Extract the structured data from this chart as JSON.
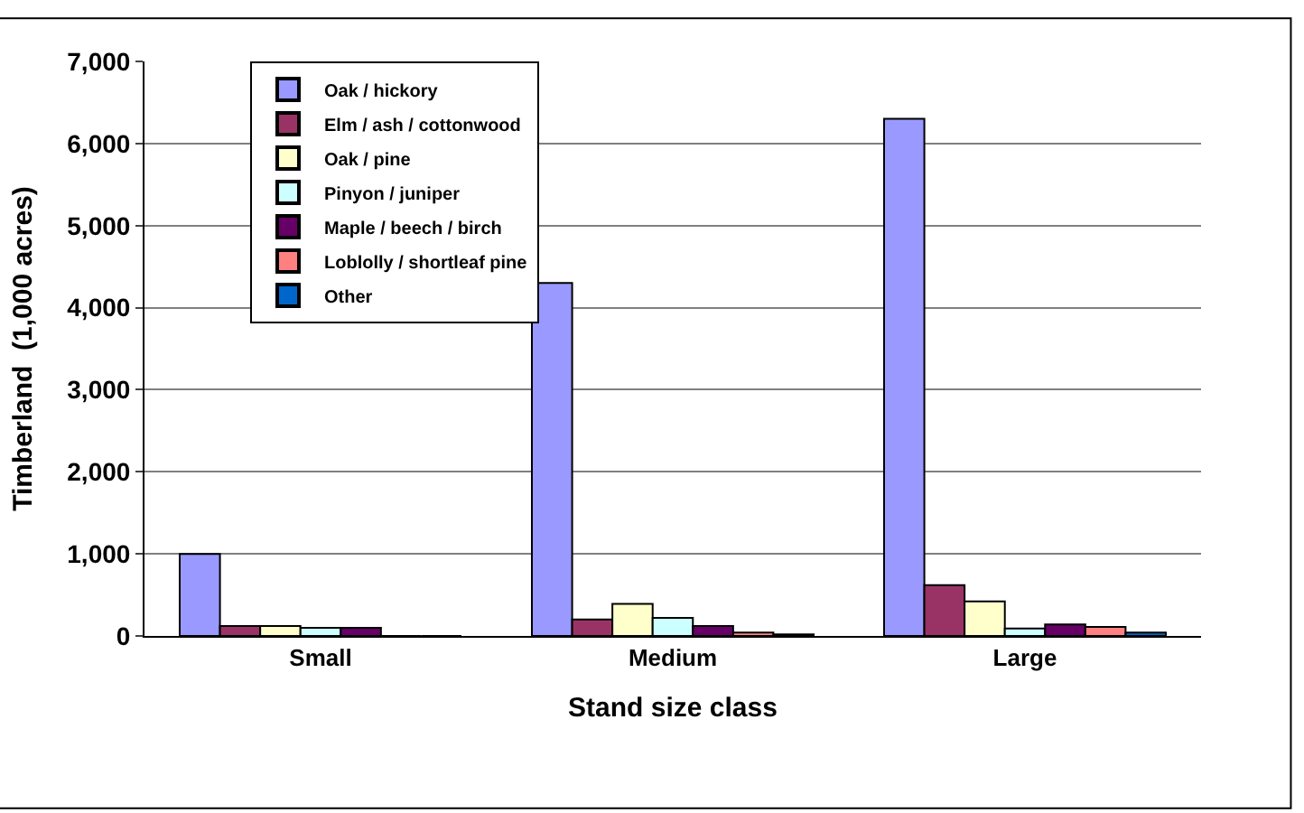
{
  "chart_data": {
    "type": "bar",
    "xlabel": "Stand size class",
    "ylabel": "Timberland  (1,000 acres)",
    "categories": [
      "Small",
      "Medium",
      "Large"
    ],
    "series": [
      {
        "name": "Oak / hickory",
        "color": "#9999ff",
        "values": [
          1000,
          4300,
          6300
        ]
      },
      {
        "name": "Elm / ash / cottonwood",
        "color": "#993366",
        "values": [
          120,
          200,
          620
        ]
      },
      {
        "name": "Oak / pine",
        "color": "#ffffcc",
        "values": [
          120,
          390,
          420
        ]
      },
      {
        "name": "Pinyon / juniper",
        "color": "#ccffff",
        "values": [
          100,
          220,
          90
        ]
      },
      {
        "name": "Maple / beech / birch",
        "color": "#660066",
        "values": [
          100,
          120,
          140
        ]
      },
      {
        "name": "Loblolly / shortleaf pine",
        "color": "#ff8080",
        "values": [
          0,
          40,
          110
        ]
      },
      {
        "name": "Other",
        "color": "#0066cc",
        "values": [
          0,
          20,
          40
        ]
      }
    ],
    "ylim": [
      0,
      7000
    ],
    "yticks": [
      {
        "value": 0,
        "label": "0"
      },
      {
        "value": 1000,
        "label": "1,000"
      },
      {
        "value": 2000,
        "label": "2,000"
      },
      {
        "value": 3000,
        "label": "3,000"
      },
      {
        "value": 4000,
        "label": "4,000"
      },
      {
        "value": 5000,
        "label": "5,000"
      },
      {
        "value": 6000,
        "label": "6,000"
      },
      {
        "value": 7000,
        "label": "7,000"
      }
    ],
    "grid": "y",
    "legend": "top left"
  }
}
